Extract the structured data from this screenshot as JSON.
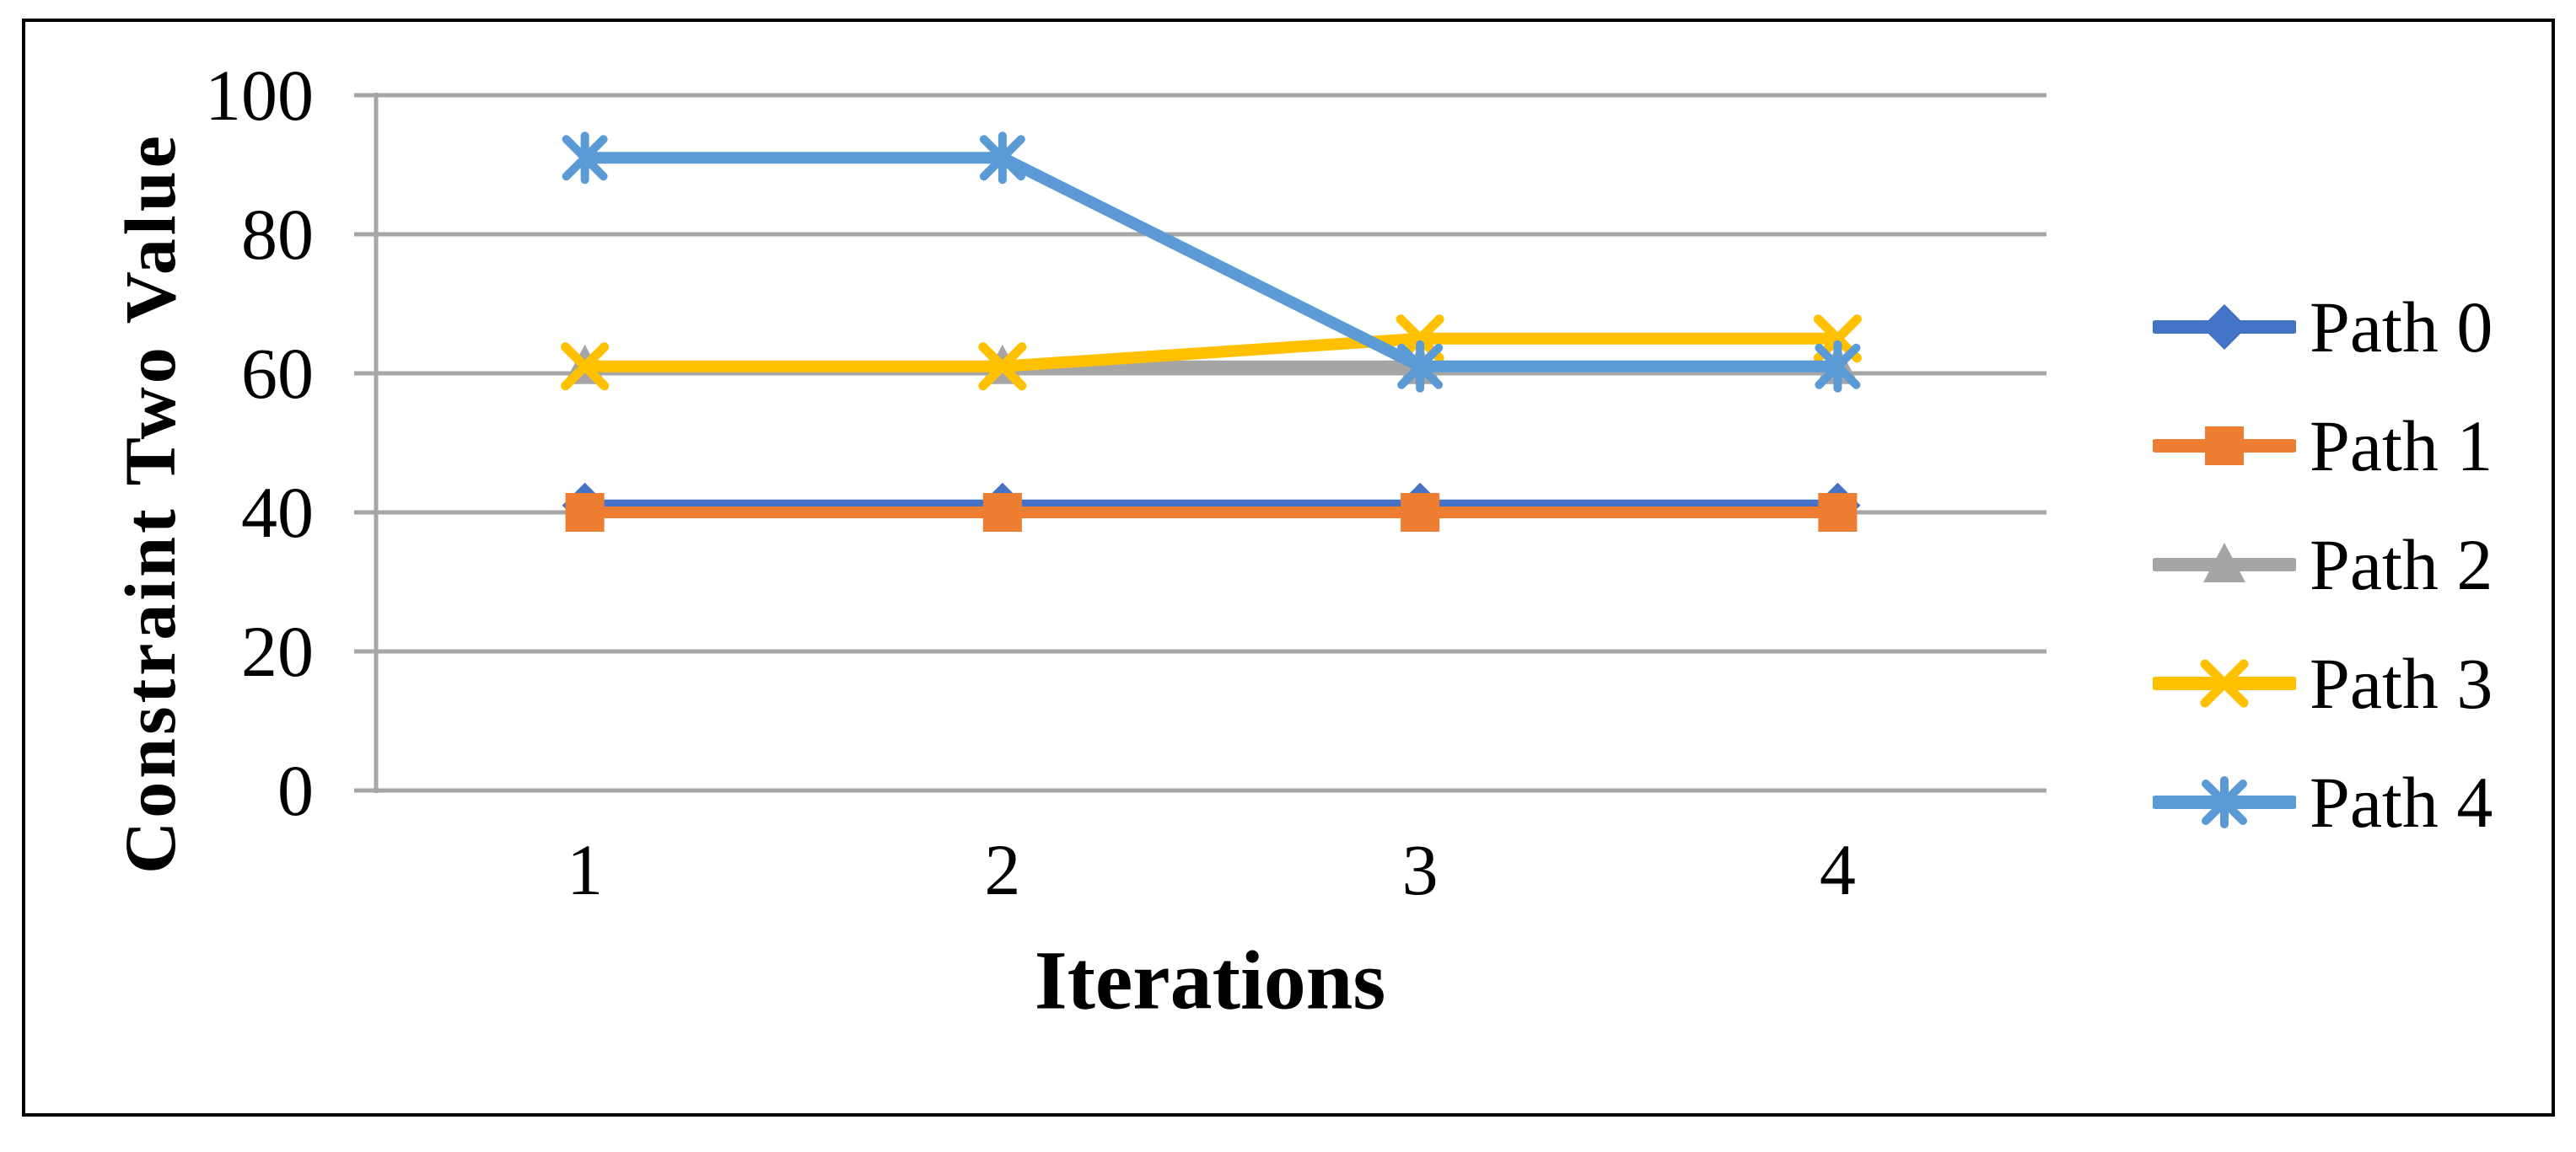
{
  "chart_data": {
    "type": "line",
    "title": "",
    "xlabel": "Iterations",
    "ylabel": "Constraint Two Value",
    "x": [
      1,
      2,
      3,
      4
    ],
    "x_tick_labels": [
      "1",
      "2",
      "3",
      "4"
    ],
    "ylim": [
      0,
      100
    ],
    "yticks": [
      0,
      20,
      40,
      60,
      80,
      100
    ],
    "grid": true,
    "legend_position": "right",
    "series": [
      {
        "name": "Path 0",
        "color": "#4472C4",
        "marker": "diamond",
        "values": [
          41,
          41,
          41,
          41
        ]
      },
      {
        "name": "Path 1",
        "color": "#ED7D31",
        "marker": "square",
        "values": [
          40,
          40,
          40,
          40
        ]
      },
      {
        "name": "Path 2",
        "color": "#A5A5A5",
        "marker": "triangle",
        "values": [
          61,
          61,
          61,
          61
        ]
      },
      {
        "name": "Path 3",
        "color": "#FFC000",
        "marker": "x",
        "values": [
          61,
          61,
          65,
          65
        ]
      },
      {
        "name": "Path 4",
        "color": "#5B9BD5",
        "marker": "asterisk",
        "values": [
          91,
          91,
          61,
          61
        ]
      }
    ]
  },
  "colors": {
    "gridline": "#A6A6A6",
    "axis": "#A6A6A6",
    "text": "#000000",
    "frame": "#000000",
    "background": "#FFFFFF"
  }
}
